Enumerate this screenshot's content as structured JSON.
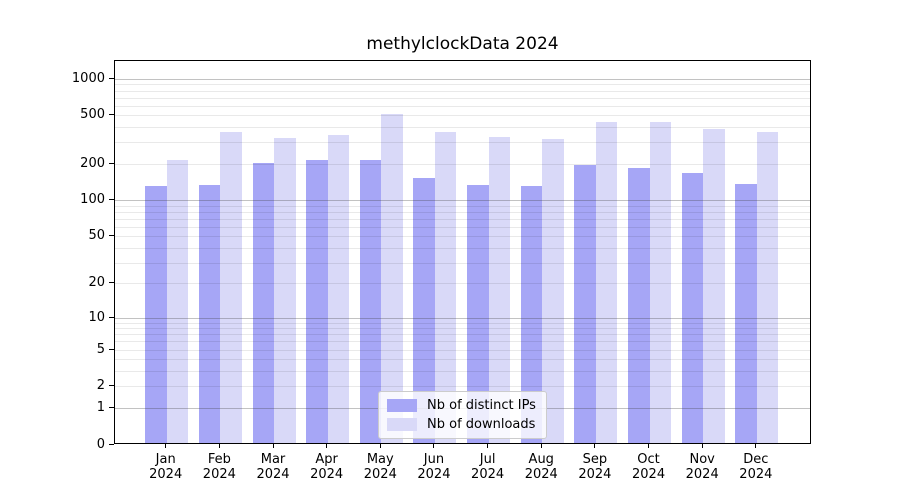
{
  "chart_data": {
    "type": "bar",
    "title": "methylclockData 2024",
    "categories": [
      "Jan",
      "Feb",
      "Mar",
      "Apr",
      "May",
      "Jun",
      "Jul",
      "Aug",
      "Sep",
      "Oct",
      "Nov",
      "Dec"
    ],
    "year_label": "2024",
    "series": [
      {
        "name": "Nb of distinct IPs",
        "color": "#a6a6f6",
        "values": [
          128,
          131,
          199,
          210,
          207,
          148,
          130,
          128,
          191,
          179,
          163,
          132
        ]
      },
      {
        "name": "Nb of downloads",
        "color": "#d9d9f8",
        "values": [
          210,
          357,
          318,
          336,
          500,
          357,
          322,
          314,
          430,
          430,
          376,
          355
        ]
      }
    ],
    "yaxis": {
      "scale": "log10(value+1)",
      "ticks": [
        0,
        1,
        2,
        5,
        10,
        20,
        50,
        100,
        200,
        500,
        1000
      ],
      "min": 0,
      "max": 1413
    },
    "grid": {
      "major_values": [
        1,
        10,
        100,
        1000
      ],
      "minor_multipliers": [
        2,
        3,
        4,
        5,
        6,
        7,
        8,
        9
      ],
      "minor_decades": [
        1,
        10,
        100
      ]
    },
    "legend_position": "lower center"
  },
  "colors": {
    "background": "#ffffff",
    "axis": "#000000",
    "grid_major": "#b3b3b3",
    "grid_minor": "#e9e9e9",
    "bar_dark": "#a6a6f6",
    "bar_light": "#d9d9f8",
    "legend_border": "#cccccc"
  }
}
